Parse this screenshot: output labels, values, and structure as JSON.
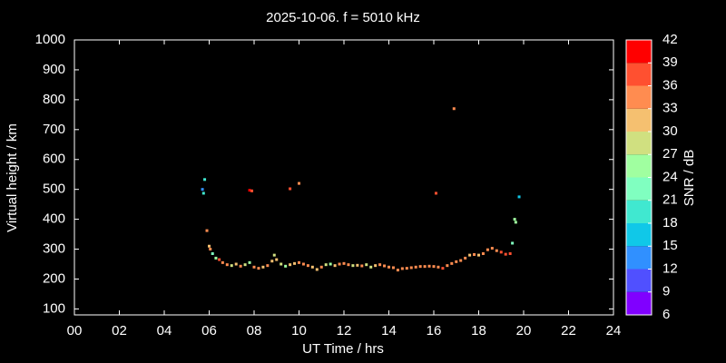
{
  "chart_data": {
    "type": "scatter",
    "title": "2025-10-06. f = 5010 kHz",
    "x_label": "UT Time / hrs",
    "y_label": "Virtual height / km",
    "xlim": [
      0,
      24
    ],
    "xticks": [
      {
        "value": 0,
        "label": "00"
      },
      {
        "value": 2,
        "label": "02"
      },
      {
        "value": 4,
        "label": "04"
      },
      {
        "value": 6,
        "label": "06"
      },
      {
        "value": 8,
        "label": "08"
      },
      10,
      12,
      14,
      16,
      18,
      20,
      22,
      24
    ],
    "ylim": [
      80,
      1000
    ],
    "yticks": [
      100,
      200,
      300,
      400,
      500,
      600,
      700,
      800,
      900,
      1000
    ],
    "x": [
      5.7,
      5.75,
      5.8,
      5.9,
      6.0,
      6.05,
      6.15,
      6.3,
      6.45,
      6.6,
      6.8,
      7.0,
      7.2,
      7.4,
      7.6,
      7.8,
      8.0,
      8.2,
      8.4,
      8.6,
      8.8,
      8.9,
      9.0,
      9.2,
      9.4,
      9.6,
      9.8,
      10.0,
      10.2,
      10.4,
      10.6,
      10.8,
      11.0,
      11.2,
      11.4,
      11.6,
      11.8,
      12.0,
      12.2,
      12.4,
      12.6,
      12.8,
      13.0,
      13.2,
      13.4,
      13.6,
      13.8,
      14.0,
      14.2,
      14.4,
      14.6,
      14.8,
      15.0,
      15.2,
      15.4,
      15.6,
      15.8,
      16.0,
      16.2,
      16.4,
      16.6,
      16.8,
      17.0,
      17.2,
      17.4,
      17.6,
      17.8,
      18.0,
      18.2,
      18.4,
      18.6,
      18.8,
      19.0,
      19.2,
      19.4,
      19.5,
      19.6,
      19.65,
      19.8,
      7.8,
      7.9,
      9.6,
      10.0,
      16.1,
      16.9
    ],
    "values": [
      500,
      487,
      533,
      362,
      310,
      300,
      285,
      270,
      265,
      255,
      248,
      245,
      250,
      243,
      248,
      255,
      240,
      236,
      240,
      245,
      260,
      280,
      265,
      250,
      243,
      248,
      252,
      255,
      250,
      245,
      240,
      232,
      240,
      248,
      250,
      245,
      250,
      252,
      248,
      245,
      246,
      244,
      248,
      240,
      245,
      248,
      244,
      240,
      238,
      230,
      235,
      236,
      238,
      240,
      242,
      242,
      243,
      242,
      240,
      236,
      245,
      252,
      258,
      262,
      270,
      280,
      282,
      280,
      285,
      298,
      303,
      295,
      290,
      283,
      285,
      320,
      400,
      390,
      475,
      497,
      495,
      502,
      520,
      487,
      770
    ],
    "snr": [
      14,
      20,
      19,
      34,
      31,
      33,
      21,
      25,
      37,
      35,
      34,
      29,
      31,
      33,
      28,
      26,
      34,
      35,
      32,
      33,
      31,
      29,
      32,
      28,
      26,
      30,
      32,
      34,
      35,
      34,
      31,
      30,
      34,
      28,
      26,
      32,
      35,
      33,
      34,
      29,
      30,
      34,
      29,
      28,
      32,
      34,
      35,
      33,
      34,
      35,
      34,
      33,
      34,
      35,
      34,
      33,
      35,
      34,
      33,
      36,
      35,
      34,
      33,
      34,
      33,
      32,
      34,
      31,
      33,
      34,
      35,
      34,
      37,
      36,
      38,
      22,
      26,
      24,
      15,
      40,
      36,
      37,
      33,
      36,
      35
    ],
    "colorbar": {
      "label": "SNR / dB",
      "lim": [
        6,
        42
      ],
      "ticks": [
        6,
        9,
        12,
        15,
        18,
        21,
        24,
        27,
        30,
        33,
        36,
        39,
        42
      ],
      "colors": [
        "#8000ff",
        "#5050ff",
        "#3090ff",
        "#10c8e8",
        "#40e8d0",
        "#80ffc0",
        "#a0ffa0",
        "#d0e080",
        "#f5c070",
        "#ff8c50",
        "#ff5030",
        "#ff0000"
      ]
    }
  }
}
